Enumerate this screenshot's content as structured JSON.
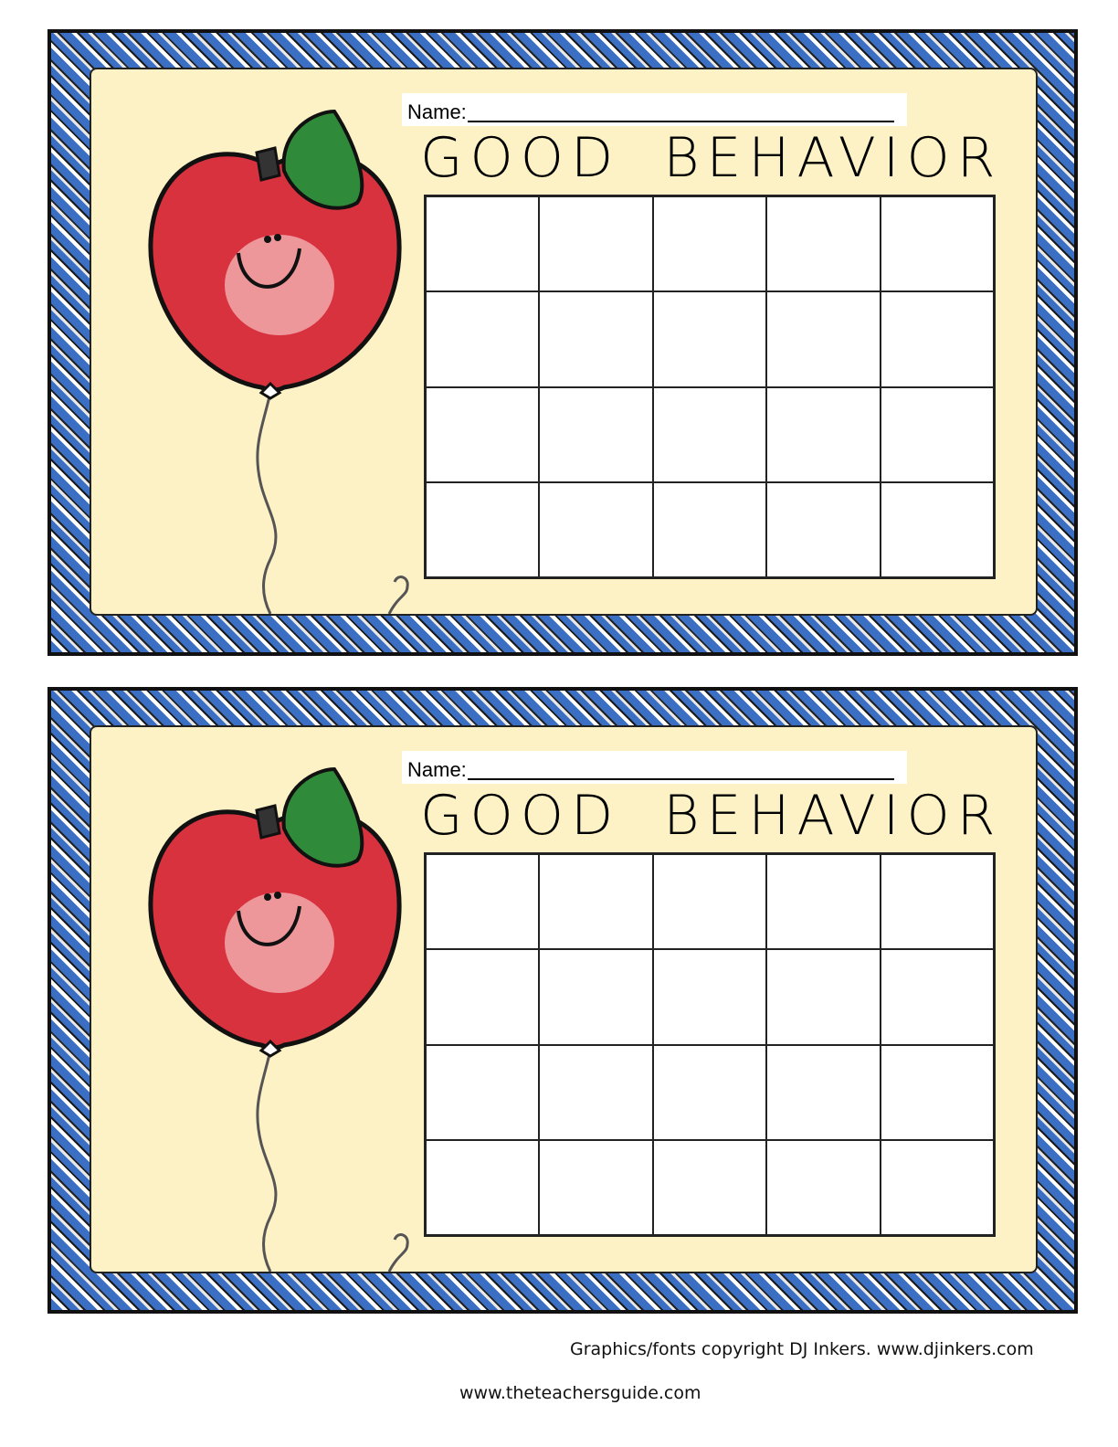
{
  "cards": [
    {
      "name_label": "Name:",
      "title": "GOOD BEHAVIOR",
      "grid": {
        "rows": 4,
        "columns": 5
      }
    },
    {
      "name_label": "Name:",
      "title": "GOOD BEHAVIOR",
      "grid": {
        "rows": 4,
        "columns": 5
      }
    }
  ],
  "footer": {
    "copyright": "Graphics/fonts copyright DJ Inkers. www.djinkers.com",
    "website": "www.theteachersguide.com"
  },
  "colors": {
    "border_blue": "#3a6fc4",
    "background_cream": "#fdf2c6",
    "apple_red": "#d9323f",
    "leaf_green": "#2f8a3a"
  }
}
